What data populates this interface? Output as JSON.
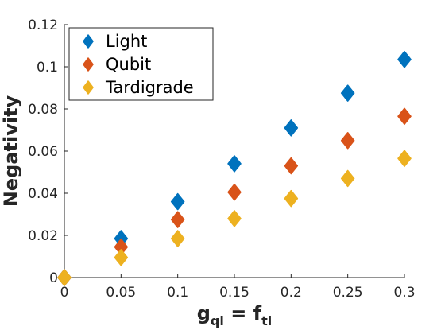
{
  "chart_data": {
    "type": "scatter",
    "marker": "diamond",
    "xlim": [
      0,
      0.3
    ],
    "ylim": [
      0,
      0.12
    ],
    "xticks": [
      "0",
      "0.05",
      "0.1",
      "0.15",
      "0.2",
      "0.25",
      "0.3"
    ],
    "yticks": [
      "0",
      "0.02",
      "0.04",
      "0.06",
      "0.08",
      "0.1",
      "0.12"
    ],
    "xticks_values": [
      0,
      0.05,
      0.1,
      0.15,
      0.2,
      0.25,
      0.3
    ],
    "yticks_values": [
      0,
      0.02,
      0.04,
      0.06,
      0.08,
      0.1,
      0.12
    ],
    "ylabel": "Negativity",
    "xlabel": {
      "g": "g",
      "g_sub": "ql",
      "eq": " = ",
      "f": "f",
      "f_sub": "tl"
    },
    "grid": false,
    "legend_position": "top-left",
    "series": [
      {
        "name": "Light",
        "color": "#0072BD",
        "points": [
          [
            0,
            0
          ],
          [
            0.05,
            0.0185
          ],
          [
            0.1,
            0.036
          ],
          [
            0.15,
            0.054
          ],
          [
            0.2,
            0.071
          ],
          [
            0.25,
            0.0875
          ],
          [
            0.3,
            0.1035
          ]
        ]
      },
      {
        "name": "Qubit",
        "color": "#D95319",
        "points": [
          [
            0,
            0
          ],
          [
            0.05,
            0.0145
          ],
          [
            0.1,
            0.0275
          ],
          [
            0.15,
            0.0405
          ],
          [
            0.2,
            0.053
          ],
          [
            0.25,
            0.065
          ],
          [
            0.3,
            0.0765
          ]
        ]
      },
      {
        "name": "Tardigrade",
        "color": "#EDB120",
        "points": [
          [
            0,
            0
          ],
          [
            0.05,
            0.0095
          ],
          [
            0.1,
            0.0185
          ],
          [
            0.15,
            0.028
          ],
          [
            0.2,
            0.0375
          ],
          [
            0.25,
            0.047
          ],
          [
            0.3,
            0.0565
          ]
        ]
      }
    ]
  }
}
